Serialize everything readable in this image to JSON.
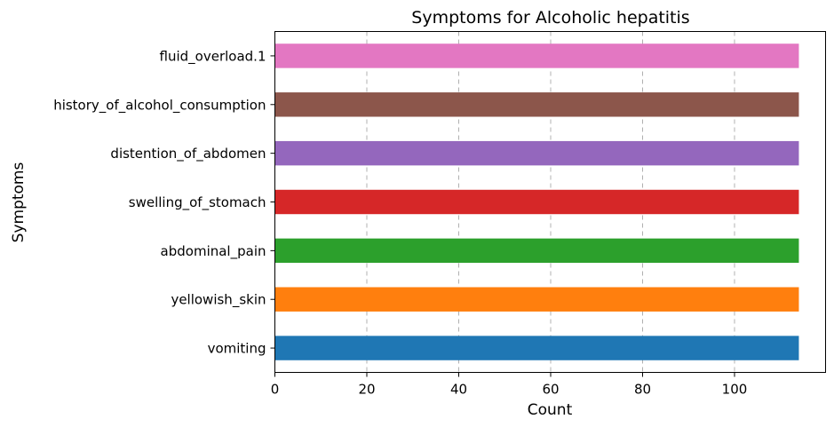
{
  "chart_data": {
    "type": "bar",
    "orientation": "horizontal",
    "title": "Symptoms for Alcoholic hepatitis",
    "xlabel": "Count",
    "ylabel": "Symptoms",
    "xlim": [
      0,
      120
    ],
    "xticks": [
      "0",
      "20",
      "40",
      "60",
      "80",
      "100"
    ],
    "categories": [
      "vomiting",
      "yellowish_skin",
      "abdominal_pain",
      "swelling_of_stomach",
      "distention_of_abdomen",
      "history_of_alcohol_consumption",
      "fluid_overload.1"
    ],
    "values": [
      114,
      114,
      114,
      114,
      114,
      114,
      114
    ],
    "colors": [
      "#1f77b4",
      "#ff7f0e",
      "#2ca02c",
      "#d62728",
      "#9467bd",
      "#8c564b",
      "#e377c2"
    ],
    "grid": "x-dashed",
    "legend": "none"
  }
}
